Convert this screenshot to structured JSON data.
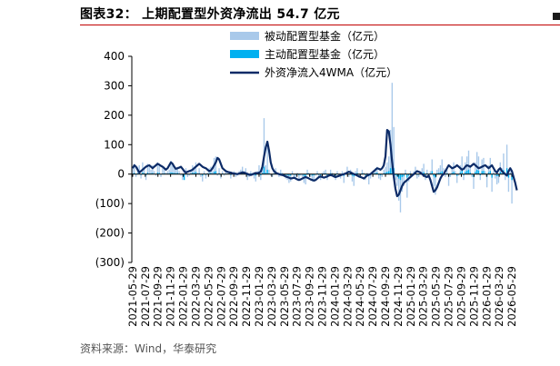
{
  "figure": {
    "title": "图表32： 上期配置型外资净流出 54.7 亿元",
    "source": "资料来源：Wind，华泰研究"
  },
  "chart_data": {
    "type": "bar",
    "title": "图表32： 上期配置型外资净流出 54.7 亿元",
    "xlabel": "",
    "ylabel": "",
    "ylim": [
      -300,
      400
    ],
    "yticks": [
      400,
      300,
      200,
      100,
      0,
      -100,
      -200,
      -300
    ],
    "ytick_labels": [
      "400",
      "300",
      "200",
      "100",
      "0",
      "(100)",
      "(200)",
      "(300)"
    ],
    "x_start": "2021-05-29",
    "x_tick_labels": [
      "2021-05-29",
      "2021-07-29",
      "2021-09-29",
      "2021-11-29",
      "2022-01-29",
      "2022-03-29",
      "2022-05-29",
      "2022-07-29",
      "2022-09-29",
      "2022-11-29",
      "2023-01-29",
      "2023-03-29",
      "2023-05-29",
      "2023-07-29",
      "2023-09-29",
      "2023-11-29",
      "2024-01-29",
      "2024-03-29",
      "2024-05-29",
      "2024-07-29",
      "2024-09-29",
      "2024-11-29",
      "2025-01-29",
      "2025-03-29",
      "2025-05-29",
      "2025-07-29",
      "2025-09-29",
      "2025-11-29",
      "2026-01-29",
      "2026-03-29",
      "2026-05-29"
    ],
    "grid": false,
    "legend_position": "top-center",
    "colors": {
      "passive": "#a9c9ea",
      "active": "#00b0f0",
      "wma": "#0c2b67",
      "title_rule": "#c00000"
    },
    "series": [
      {
        "name": "被动配置型基金（亿元）",
        "type": "bar",
        "values": [
          20,
          35,
          -10,
          25,
          30,
          -15,
          40,
          20,
          -20,
          35,
          25,
          15,
          30,
          10,
          -5,
          40,
          35,
          -10,
          20,
          25,
          5,
          10,
          15,
          45,
          35,
          30,
          20,
          25,
          10,
          -5,
          -20,
          10,
          20,
          -10,
          -5,
          15,
          30,
          25,
          40,
          5,
          20,
          -10,
          -25,
          10,
          -15,
          5,
          20,
          25,
          10,
          55,
          60,
          -5,
          20,
          -15,
          10,
          -5,
          15,
          5,
          10,
          -15,
          5,
          10,
          -10,
          -5,
          10,
          15,
          25,
          10,
          20,
          -20,
          -10,
          10,
          5,
          -15,
          -25,
          10,
          30,
          -20,
          25,
          190,
          30,
          90,
          15,
          -5,
          -10,
          10,
          20,
          5,
          -10,
          15,
          5,
          -5,
          -15,
          -20,
          -30,
          -25,
          10,
          -10,
          -15,
          5,
          -20,
          -5,
          -10,
          -30,
          -35,
          15,
          5,
          -10,
          -25,
          -20,
          -5,
          10,
          -15,
          -20,
          5,
          10,
          15,
          -20,
          -5,
          15,
          5,
          -10,
          -20,
          10,
          -5,
          -15,
          10,
          -30,
          5,
          25,
          -10,
          15,
          -25,
          -40,
          10,
          20,
          -5,
          -10,
          15,
          5,
          -20,
          5,
          -35,
          -15,
          5,
          10,
          20,
          25,
          -15,
          -20,
          -10,
          15,
          25,
          40,
          60,
          150,
          310,
          160,
          -20,
          -40,
          -90,
          -130,
          -60,
          -40,
          15,
          -80,
          -25,
          10,
          -5,
          10,
          25,
          -15,
          -10,
          10,
          20,
          35,
          -20,
          15,
          -10,
          10,
          50,
          -40,
          -70,
          15,
          20,
          30,
          50,
          20,
          -10,
          15,
          -40,
          -10,
          20,
          40,
          10,
          -30,
          -5,
          30,
          60,
          -20,
          40,
          60,
          80,
          25,
          -10,
          -50,
          40,
          75,
          60,
          -20,
          50,
          55,
          10,
          -45,
          30,
          55,
          -60,
          10,
          -15,
          -35,
          -30,
          40,
          20,
          70,
          -20,
          100,
          -60,
          10,
          -100
        ]
      },
      {
        "name": "主动配置型基金（亿元）",
        "type": "bar",
        "values": [
          2,
          4,
          -2,
          3,
          5,
          -3,
          6,
          3,
          -4,
          5,
          2,
          3,
          4,
          1,
          -2,
          5,
          4,
          -2,
          2,
          3,
          1,
          2,
          3,
          6,
          5,
          4,
          3,
          4,
          2,
          -1,
          -3,
          -20,
          3,
          -2,
          -1,
          2,
          5,
          4,
          7,
          1,
          3,
          -2,
          -5,
          2,
          -3,
          1,
          3,
          4,
          2,
          8,
          10,
          -1,
          3,
          -3,
          2,
          -1,
          2,
          1,
          2,
          -3,
          1,
          2,
          -2,
          -1,
          2,
          3,
          4,
          2,
          3,
          -4,
          -2,
          2,
          1,
          -3,
          -5,
          2,
          5,
          -4,
          4,
          25,
          5,
          15,
          3,
          -1,
          -2,
          2,
          3,
          1,
          -2,
          3,
          1,
          -1,
          -3,
          -4,
          -6,
          -5,
          2,
          -2,
          -3,
          1,
          -4,
          -1,
          -2,
          -6,
          -7,
          3,
          1,
          -2,
          -5,
          -4,
          -1,
          2,
          -3,
          -4,
          1,
          2,
          3,
          -4,
          -1,
          3,
          1,
          -2,
          -4,
          2,
          -1,
          -3,
          2,
          -6,
          1,
          5,
          -2,
          3,
          -5,
          -8,
          2,
          4,
          -1,
          -2,
          3,
          1,
          -4,
          1,
          -7,
          -3,
          1,
          2,
          4,
          5,
          -3,
          -4,
          -2,
          3,
          5,
          8,
          10,
          20,
          35,
          20,
          -4,
          -8,
          -15,
          -20,
          -10,
          -8,
          3,
          -12,
          -5,
          2,
          -1,
          2,
          5,
          -3,
          -2,
          2,
          4,
          7,
          -4,
          3,
          -2,
          2,
          10,
          -8,
          -12,
          3,
          4,
          6,
          10,
          4,
          -2,
          3,
          -8,
          -2,
          4,
          8,
          2,
          -6,
          -1,
          6,
          12,
          -4,
          8,
          12,
          15,
          5,
          -2,
          -10,
          8,
          15,
          12,
          -4,
          10,
          11,
          2,
          -9,
          6,
          11,
          -12,
          2,
          -3,
          -7,
          -6,
          8,
          4,
          14,
          -4,
          20,
          -12,
          2,
          -20
        ]
      },
      {
        "name": "外资净流入4WMA（亿元）",
        "type": "line",
        "values": [
          20,
          30,
          25,
          15,
          5,
          10,
          15,
          20,
          25,
          28,
          30,
          25,
          20,
          25,
          30,
          35,
          32,
          28,
          25,
          20,
          15,
          20,
          30,
          40,
          35,
          25,
          18,
          20,
          22,
          25,
          18,
          10,
          5,
          8,
          10,
          12,
          15,
          20,
          25,
          30,
          35,
          30,
          25,
          22,
          20,
          15,
          10,
          12,
          20,
          30,
          40,
          55,
          50,
          35,
          20,
          15,
          10,
          8,
          6,
          5,
          3,
          2,
          1,
          0,
          2,
          4,
          6,
          5,
          3,
          1,
          -2,
          -3,
          -1,
          2,
          4,
          3,
          5,
          8,
          25,
          60,
          90,
          110,
          80,
          40,
          20,
          10,
          5,
          2,
          0,
          -2,
          -3,
          -5,
          -8,
          -10,
          -12,
          -15,
          -14,
          -12,
          -15,
          -18,
          -20,
          -18,
          -15,
          -12,
          -10,
          -12,
          -15,
          -18,
          -20,
          -22,
          -20,
          -15,
          -10,
          -8,
          -10,
          -12,
          -10,
          -8,
          -5,
          -3,
          -5,
          -8,
          -10,
          -8,
          -6,
          -4,
          -2,
          0,
          2,
          5,
          8,
          6,
          3,
          0,
          -2,
          -5,
          -8,
          -10,
          -12,
          -15,
          -10,
          -5,
          -2,
          0,
          5,
          10,
          15,
          20,
          18,
          15,
          20,
          30,
          60,
          150,
          145,
          100,
          40,
          -10,
          -50,
          -75,
          -70,
          -55,
          -40,
          -30,
          -25,
          -20,
          -15,
          -10,
          -5,
          0,
          5,
          10,
          8,
          5,
          0,
          -5,
          -8,
          -10,
          -5,
          -20,
          -40,
          -60,
          -55,
          -45,
          -30,
          -15,
          -5,
          0,
          10,
          20,
          30,
          25,
          20,
          22,
          25,
          30,
          25,
          20,
          15,
          18,
          25,
          30,
          28,
          25,
          30,
          35,
          30,
          25,
          20,
          22,
          25,
          28,
          30,
          25,
          20,
          25,
          30,
          20,
          10,
          5,
          15,
          20,
          10,
          5,
          0,
          -5,
          10,
          20,
          10,
          -10,
          -30,
          -55
        ]
      }
    ]
  }
}
